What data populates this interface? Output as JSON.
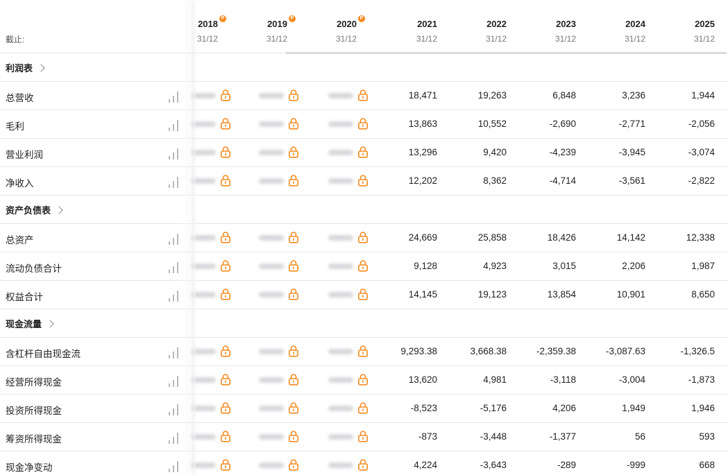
{
  "header": {
    "as_of_label": "截止:",
    "columns": [
      {
        "year": "2018",
        "date": "31/12",
        "premium": true,
        "badge": "P"
      },
      {
        "year": "2019",
        "date": "31/12",
        "premium": true,
        "badge": "P"
      },
      {
        "year": "2020",
        "date": "31/12",
        "premium": true,
        "badge": "P"
      },
      {
        "year": "2021",
        "date": "31/12",
        "premium": false
      },
      {
        "year": "2022",
        "date": "31/12",
        "premium": false
      },
      {
        "year": "2023",
        "date": "31/12",
        "premium": false
      },
      {
        "year": "2024",
        "date": "31/12",
        "premium": false
      },
      {
        "year": "2025",
        "date": "31/12",
        "premium": false
      }
    ]
  },
  "sections": [
    {
      "title": "利润表",
      "rows": [
        {
          "label": "总营收",
          "values": [
            "18,471",
            "19,263",
            "6,848",
            "3,236",
            "1,944"
          ]
        },
        {
          "label": "毛利",
          "values": [
            "13,863",
            "10,552",
            "-2,690",
            "-2,771",
            "-2,056"
          ]
        },
        {
          "label": "营业利润",
          "values": [
            "13,296",
            "9,420",
            "-4,239",
            "-3,945",
            "-3,074"
          ]
        },
        {
          "label": "净收入",
          "values": [
            "12,202",
            "8,362",
            "-4,714",
            "-3,561",
            "-2,822"
          ]
        }
      ]
    },
    {
      "title": "资产负债表",
      "rows": [
        {
          "label": "总资产",
          "values": [
            "24,669",
            "25,858",
            "18,426",
            "14,142",
            "12,338"
          ]
        },
        {
          "label": "流动负债合计",
          "values": [
            "9,128",
            "4,923",
            "3,015",
            "2,206",
            "1,987"
          ]
        },
        {
          "label": "权益合计",
          "values": [
            "14,145",
            "19,123",
            "13,854",
            "10,901",
            "8,650"
          ]
        }
      ]
    },
    {
      "title": "现金流量",
      "rows": [
        {
          "label": "含杠杆自由现金流",
          "values": [
            "9,293.38",
            "3,668.38",
            "-2,359.38",
            "-3,087.63",
            "-1,326.5"
          ]
        },
        {
          "label": "经营所得现金",
          "values": [
            "13,620",
            "4,981",
            "-3,118",
            "-3,004",
            "-1,873"
          ]
        },
        {
          "label": "投资所得现金",
          "values": [
            "-8,523",
            "-5,176",
            "4,206",
            "1,949",
            "1,946"
          ]
        },
        {
          "label": "筹资所得现金",
          "values": [
            "-873",
            "-3,448",
            "-1,377",
            "56",
            "593"
          ]
        },
        {
          "label": "现金净变动",
          "values": [
            "4,224",
            "-3,643",
            "-289",
            "-999",
            "668"
          ]
        }
      ]
    }
  ],
  "icons": {
    "lock": "lock-icon",
    "chart": "bar-chart-icon",
    "section_expand": "chevron-right-icon",
    "premium": "premium-badge-icon"
  },
  "colors": {
    "accent": "#f58a1f",
    "row_divider": "#e6e6e6",
    "chart_icon": "#b8b8bc"
  }
}
